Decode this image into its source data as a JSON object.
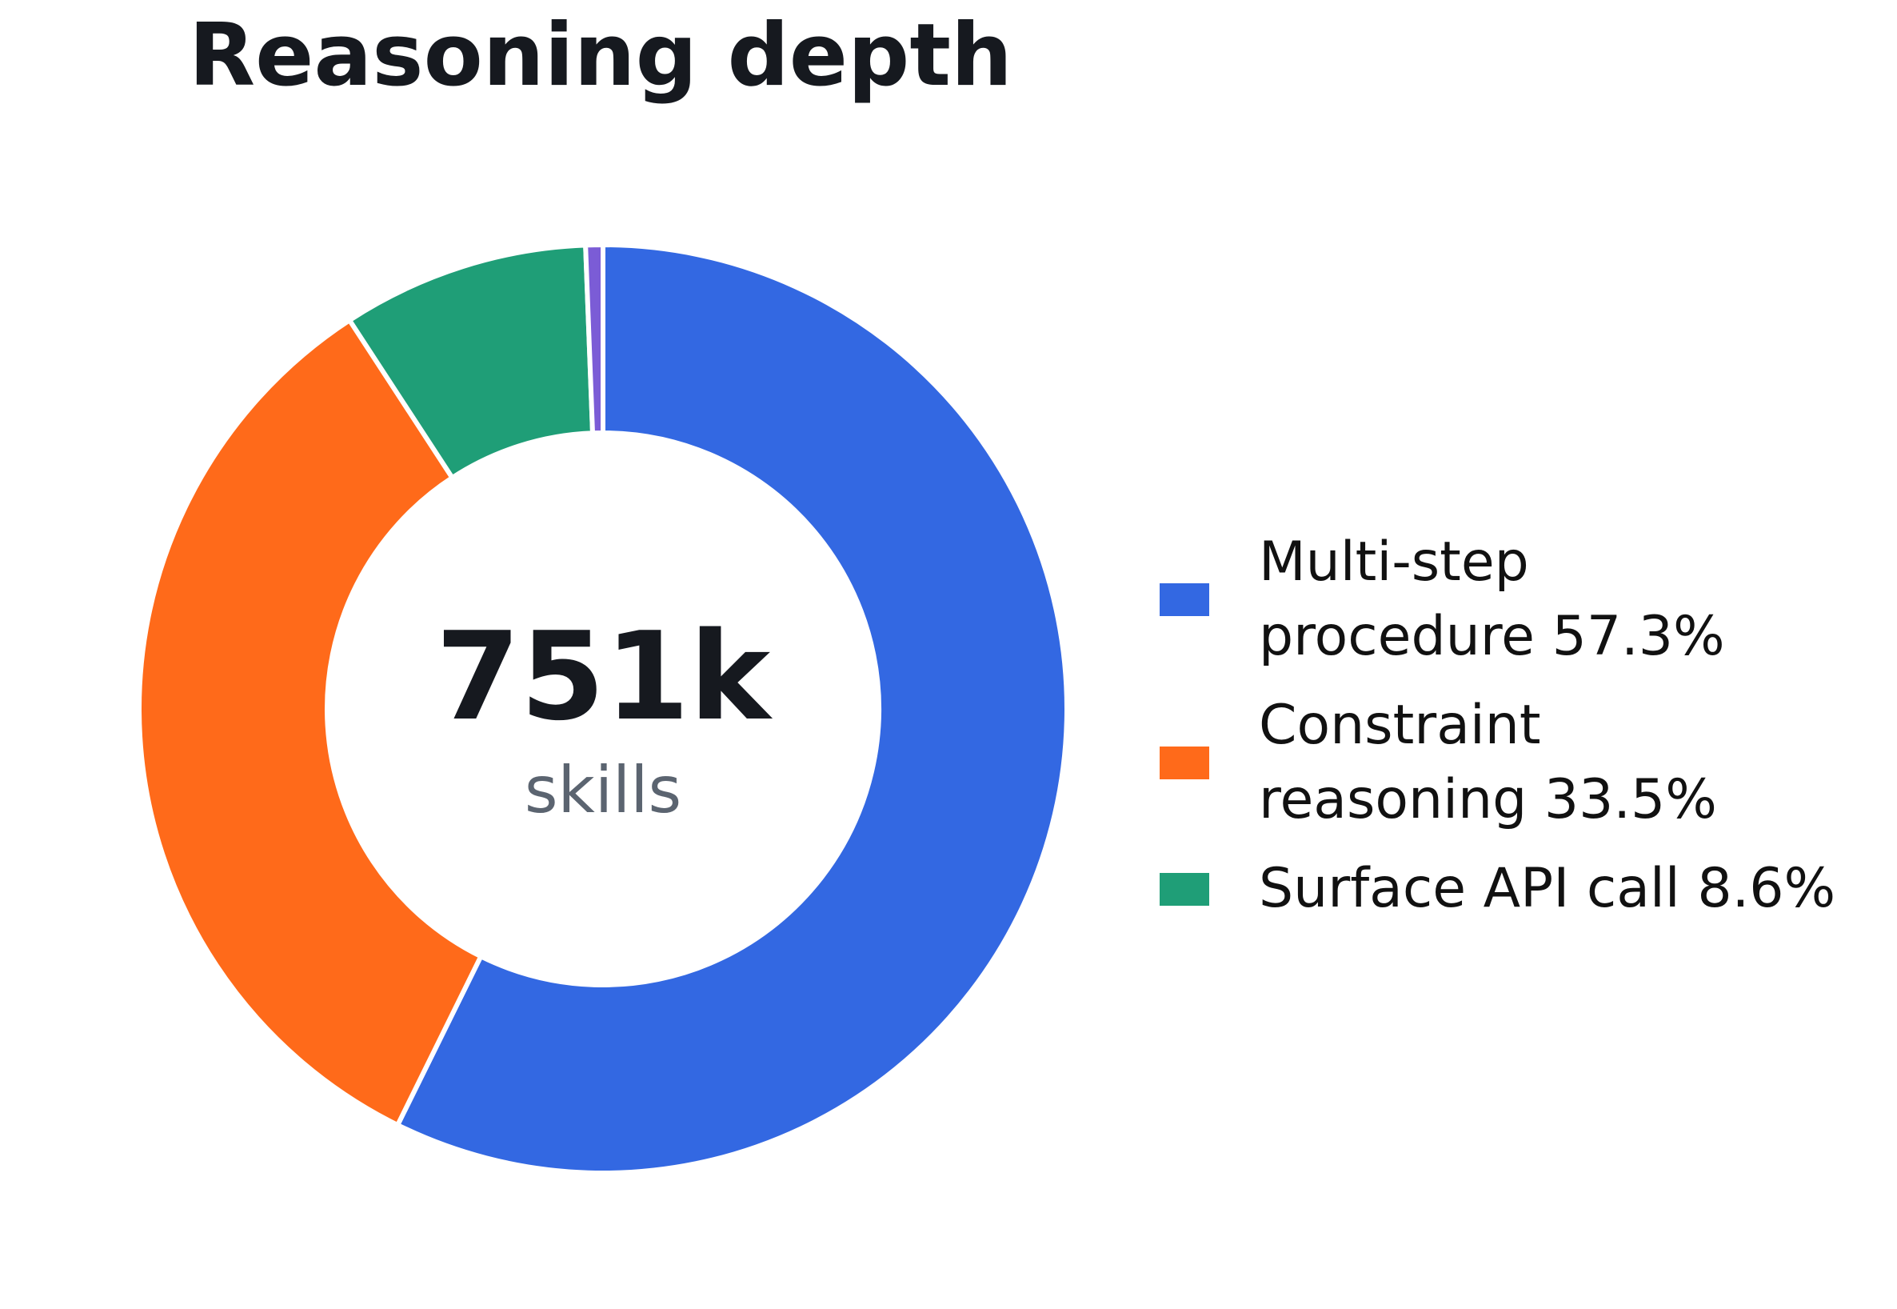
{
  "chart_data": {
    "type": "pie",
    "variant": "donut",
    "title": "Reasoning depth",
    "center": {
      "value": "751k",
      "label": "skills"
    },
    "slices": [
      {
        "legend_text": "Multi-step procedure 57.3%",
        "legend_lines": [
          "Multi-step",
          "procedure 57.3%"
        ],
        "value": 57.3,
        "color": "#3368e2"
      },
      {
        "legend_text": "Constraint reasoning 33.5%",
        "legend_lines": [
          "Constraint",
          "reasoning 33.5%"
        ],
        "value": 33.5,
        "color": "#ff6a1a"
      },
      {
        "legend_text": "Surface API call 8.6%",
        "legend_lines": [
          "Surface API call 8.6%"
        ],
        "value": 8.6,
        "color": "#1f9e77"
      },
      {
        "legend_text": "",
        "legend_lines": [],
        "value": 0.6,
        "color": "#7b5cd6"
      }
    ],
    "legend_position": "right",
    "start_angle": "top",
    "direction": "clockwise"
  }
}
